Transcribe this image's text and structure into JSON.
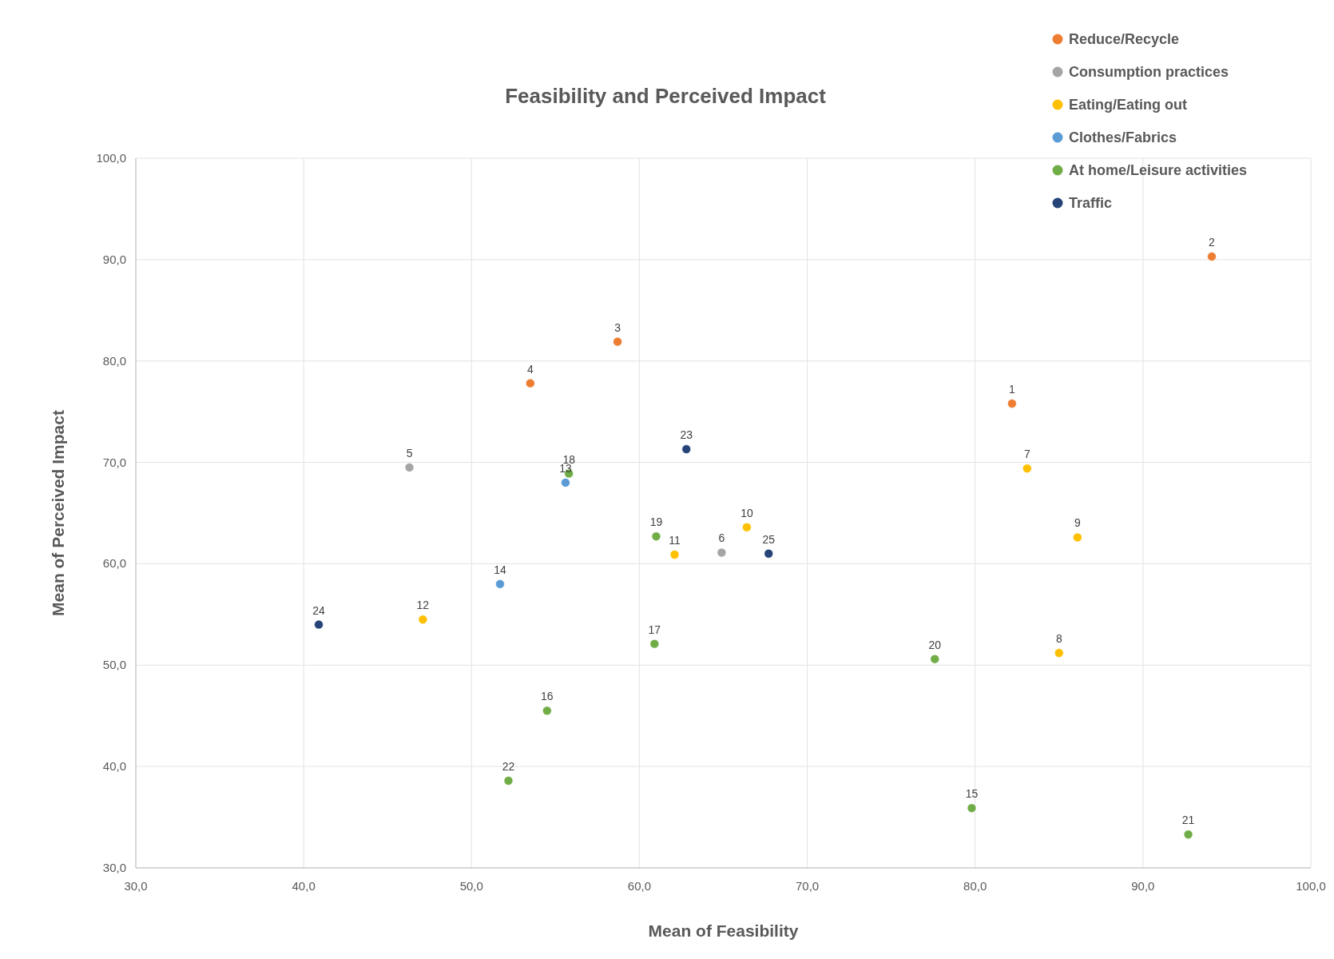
{
  "chart_data": {
    "type": "scatter",
    "title": "Feasibility and Perceived Impact",
    "xlabel": "Mean of Feasibility",
    "ylabel": "Mean of Perceived Impact",
    "xlim": [
      30,
      100
    ],
    "ylim": [
      30,
      100
    ],
    "xticks": [
      {
        "value": 30,
        "label": "30,0"
      },
      {
        "value": 40,
        "label": "40,0"
      },
      {
        "value": 50,
        "label": "50,0"
      },
      {
        "value": 60,
        "label": "60,0"
      },
      {
        "value": 70,
        "label": "70,0"
      },
      {
        "value": 80,
        "label": "80,0"
      },
      {
        "value": 90,
        "label": "90,0"
      },
      {
        "value": 100,
        "label": "100,0"
      }
    ],
    "yticks": [
      {
        "value": 30,
        "label": "30,0"
      },
      {
        "value": 40,
        "label": "40,0"
      },
      {
        "value": 50,
        "label": "50,0"
      },
      {
        "value": 60,
        "label": "60,0"
      },
      {
        "value": 70,
        "label": "70,0"
      },
      {
        "value": 80,
        "label": "80,0"
      },
      {
        "value": 90,
        "label": "90,0"
      },
      {
        "value": 100,
        "label": "100,0"
      }
    ],
    "annotations": [
      {
        "text": "1",
        "x": 82.2,
        "y": 75.8
      },
      {
        "text": "2",
        "x": 94.1,
        "y": 90.3
      },
      {
        "text": "3",
        "x": 58.7,
        "y": 81.9
      },
      {
        "text": "4",
        "x": 53.5,
        "y": 77.8
      },
      {
        "text": "5",
        "x": 46.3,
        "y": 69.5
      },
      {
        "text": "6",
        "x": 64.9,
        "y": 61.1
      },
      {
        "text": "7",
        "x": 83.1,
        "y": 69.4
      },
      {
        "text": "8",
        "x": 85.0,
        "y": 51.2
      },
      {
        "text": "9",
        "x": 86.1,
        "y": 62.6
      },
      {
        "text": "10",
        "x": 66.4,
        "y": 63.6
      },
      {
        "text": "11",
        "x": 62.1,
        "y": 60.9
      },
      {
        "text": "12",
        "x": 47.1,
        "y": 54.5
      },
      {
        "text": "13",
        "x": 55.6,
        "y": 68.0
      },
      {
        "text": "14",
        "x": 51.7,
        "y": 58.0
      },
      {
        "text": "15",
        "x": 79.8,
        "y": 35.9
      },
      {
        "text": "16",
        "x": 54.5,
        "y": 45.5
      },
      {
        "text": "17",
        "x": 60.9,
        "y": 52.1
      },
      {
        "text": "18",
        "x": 55.8,
        "y": 68.9
      },
      {
        "text": "19",
        "x": 61.0,
        "y": 62.7
      },
      {
        "text": "20",
        "x": 77.6,
        "y": 50.6
      },
      {
        "text": "21",
        "x": 92.7,
        "y": 33.3
      },
      {
        "text": "22",
        "x": 52.2,
        "y": 38.6
      },
      {
        "text": "23",
        "x": 62.8,
        "y": 71.3
      },
      {
        "text": "24",
        "x": 40.9,
        "y": 54.0
      },
      {
        "text": "25",
        "x": 67.7,
        "y": 61.0
      }
    ],
    "grid": true,
    "legend": "top right",
    "marker": "circle",
    "series": [
      {
        "name": "Reduce/Recycle",
        "color": "#ed7d31",
        "x": [
          82.2,
          94.1,
          58.7,
          53.5
        ],
        "values": [
          75.8,
          90.3,
          81.9,
          77.8
        ]
      },
      {
        "name": "Consumption practices",
        "color": "#a5a5a5",
        "x": [
          46.3,
          64.9
        ],
        "values": [
          69.5,
          61.1
        ]
      },
      {
        "name": "Eating/Eating out",
        "color": "#ffc000",
        "x": [
          83.1,
          85.0,
          86.1,
          66.4,
          62.1,
          47.1
        ],
        "values": [
          69.4,
          51.2,
          62.6,
          63.6,
          60.9,
          54.5
        ]
      },
      {
        "name": "Clothes/Fabrics",
        "color": "#5b9bd5",
        "x": [
          55.6,
          51.7
        ],
        "values": [
          68.0,
          58.0
        ]
      },
      {
        "name": "At home/Leisure activities",
        "color": "#70ad47",
        "x": [
          79.8,
          54.5,
          60.9,
          55.8,
          61.0,
          77.6,
          92.7,
          52.2
        ],
        "values": [
          35.9,
          45.5,
          52.1,
          68.9,
          62.7,
          50.6,
          33.3,
          38.6
        ]
      },
      {
        "name": "Traffic",
        "color": "#264478",
        "x": [
          62.8,
          40.9,
          67.7
        ],
        "values": [
          71.3,
          54.0,
          61.0
        ]
      }
    ]
  }
}
